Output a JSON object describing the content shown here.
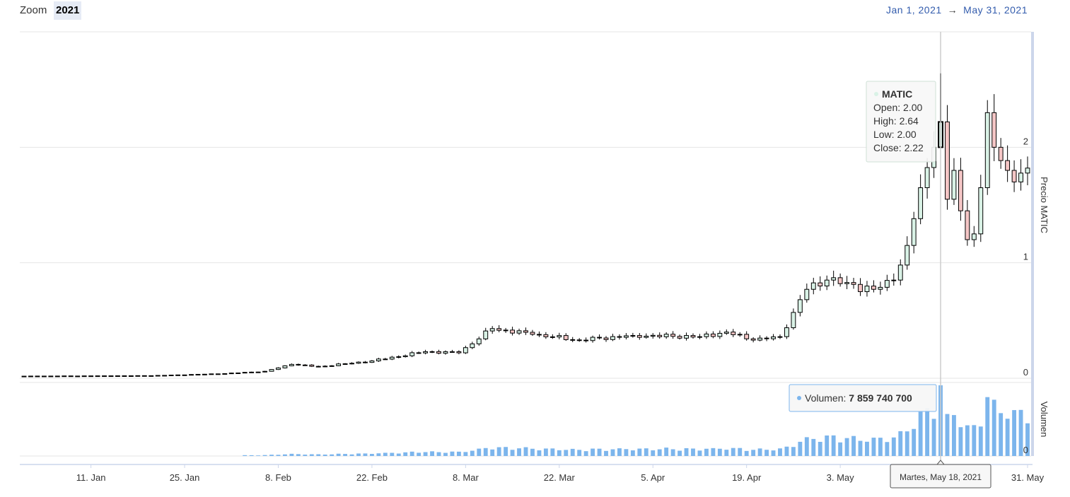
{
  "toolbar": {
    "zoom_label": "Zoom",
    "zoom_value": "2021",
    "range_from": "Jan 1, 2021",
    "range_arrow": "→",
    "range_to": "May 31, 2021"
  },
  "tooltip": {
    "series_name": "MATIC",
    "open": "Open: 2.00",
    "high": "High: 2.64",
    "low": "Low: 2.00",
    "close": "Close: 2.22",
    "volume_label": "Volumen: ",
    "volume_value": "7 859 740 700",
    "date_label": "Martes, May 18, 2021"
  },
  "colors": {
    "up_fill": "#d9f2e6",
    "down_fill": "#f5c6c6",
    "volume": "#7cb5ec",
    "grid": "#e6e6e6",
    "navigator": "#ccd6eb"
  },
  "chart_data": {
    "type": "candlestick",
    "title": "",
    "x_start": "2021-01-01",
    "x_end": "2021-05-31",
    "x_tick_labels": [
      "11. Jan",
      "25. Jan",
      "8. Feb",
      "22. Feb",
      "8. Mar",
      "22. Mar",
      "5. Apr",
      "19. Apr",
      "3. May",
      "31. May"
    ],
    "price_axis": {
      "title": "Precio MATIC",
      "ticks": [
        0,
        1,
        2
      ],
      "range": [
        0,
        3
      ]
    },
    "volume_axis": {
      "title": "Volumen",
      "ticks": [
        0
      ]
    },
    "price_waypoints": [
      {
        "date": "2021-01-01",
        "close": 0.018
      },
      {
        "date": "2021-01-20",
        "close": 0.022
      },
      {
        "date": "2021-01-31",
        "close": 0.04
      },
      {
        "date": "2021-02-06",
        "close": 0.06
      },
      {
        "date": "2021-02-10",
        "close": 0.12
      },
      {
        "date": "2021-02-14",
        "close": 0.1
      },
      {
        "date": "2021-02-22",
        "close": 0.15
      },
      {
        "date": "2021-03-02",
        "close": 0.23
      },
      {
        "date": "2021-03-07",
        "close": 0.22
      },
      {
        "date": "2021-03-12",
        "close": 0.43
      },
      {
        "date": "2021-03-18",
        "close": 0.38
      },
      {
        "date": "2021-03-25",
        "close": 0.33
      },
      {
        "date": "2021-04-02",
        "close": 0.37
      },
      {
        "date": "2021-04-12",
        "close": 0.36
      },
      {
        "date": "2021-04-16",
        "close": 0.4
      },
      {
        "date": "2021-04-20",
        "close": 0.33
      },
      {
        "date": "2021-04-24",
        "close": 0.36
      },
      {
        "date": "2021-04-28",
        "close": 0.77
      },
      {
        "date": "2021-05-01",
        "close": 0.85
      },
      {
        "date": "2021-05-08",
        "close": 0.77
      },
      {
        "date": "2021-05-11",
        "close": 0.85
      },
      {
        "date": "2021-05-13",
        "close": 1.15
      },
      {
        "date": "2021-05-15",
        "close": 1.65
      },
      {
        "date": "2021-05-17",
        "close": 2.0
      },
      {
        "date": "2021-05-18",
        "close": 2.22
      },
      {
        "date": "2021-05-19",
        "close": 1.55
      },
      {
        "date": "2021-05-20",
        "close": 1.8
      },
      {
        "date": "2021-05-21",
        "close": 1.45
      },
      {
        "date": "2021-05-22",
        "close": 1.2
      },
      {
        "date": "2021-05-23",
        "close": 1.25
      },
      {
        "date": "2021-05-24",
        "close": 1.65
      },
      {
        "date": "2021-05-25",
        "close": 2.3
      },
      {
        "date": "2021-05-26",
        "close": 2.0
      },
      {
        "date": "2021-05-28",
        "close": 1.8
      },
      {
        "date": "2021-05-29",
        "close": 1.7
      },
      {
        "date": "2021-05-31",
        "close": 1.82
      }
    ],
    "highlight_candle": {
      "date": "2021-05-18",
      "open": 2.0,
      "high": 2.64,
      "low": 2.0,
      "close": 2.22,
      "volume": 7859740700
    },
    "volume_max": 7859740700
  }
}
